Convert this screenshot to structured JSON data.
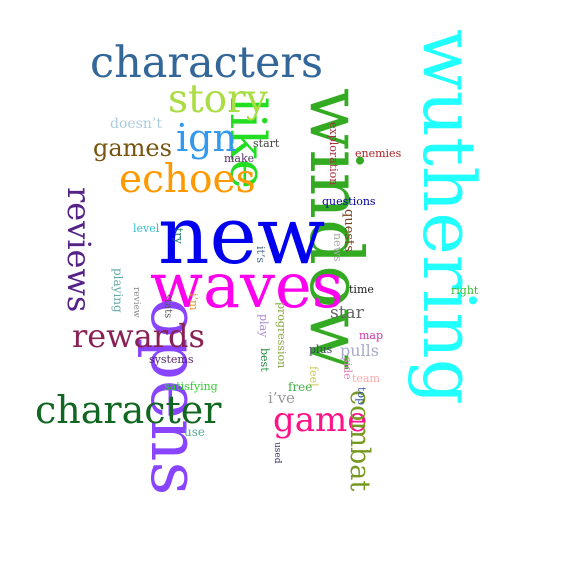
{
  "words": [
    {
      "text": "wuthering",
      "color": "#22ffff",
      "rotated": true
    },
    {
      "text": "window",
      "color": "#33aa22",
      "rotated": true
    },
    {
      "text": "new",
      "color": "#0000ee",
      "rotated": false
    },
    {
      "text": "waves",
      "color": "#ff00ee",
      "rotated": false
    },
    {
      "text": "opens",
      "color": "#8844ff",
      "rotated": true
    },
    {
      "text": "characters",
      "color": "#336699",
      "rotated": false
    },
    {
      "text": "like",
      "color": "#22dd22",
      "rotated": true
    },
    {
      "text": "story",
      "color": "#aadd44",
      "rotated": false
    },
    {
      "text": "echoes",
      "color": "#ff9900",
      "rotated": false
    },
    {
      "text": "ign",
      "color": "#3399ee",
      "rotated": false
    },
    {
      "text": "character",
      "color": "#116622",
      "rotated": false
    },
    {
      "text": "game",
      "color": "#ff1188",
      "rotated": false
    },
    {
      "text": "combat",
      "color": "#779922",
      "rotated": true
    },
    {
      "text": "reviews",
      "color": "#552288",
      "rotated": true
    },
    {
      "text": "rewards",
      "color": "#882255",
      "rotated": false
    },
    {
      "text": "games",
      "color": "#775511",
      "rotated": false
    },
    {
      "text": "doesn’t",
      "color": "#aaccdd",
      "rotated": false
    },
    {
      "text": "start",
      "color": "#444444",
      "rotated": false
    },
    {
      "text": "make",
      "color": "#553366",
      "rotated": false
    },
    {
      "text": "exploration",
      "color": "#aa3344",
      "rotated": true
    },
    {
      "text": "enemies",
      "color": "#aa2222",
      "rotated": false
    },
    {
      "text": "questions",
      "color": "#000099",
      "rotated": false
    },
    {
      "text": "level",
      "color": "#33bbcc",
      "rotated": false
    },
    {
      "text": "try",
      "color": "#117766",
      "rotated": true
    },
    {
      "text": "it’s",
      "color": "#446688",
      "rotated": true
    },
    {
      "text": "news",
      "color": "#aaaaaa",
      "rotated": true
    },
    {
      "text": "quests",
      "color": "#774422",
      "rotated": true
    },
    {
      "text": "playing",
      "color": "#66aaaa",
      "rotated": true
    },
    {
      "text": "review",
      "color": "#888888",
      "rotated": true
    },
    {
      "text": "stats",
      "color": "#555555",
      "rotated": true
    },
    {
      "text": "i’m",
      "color": "#dd9933",
      "rotated": true
    },
    {
      "text": "play",
      "color": "#aa88cc",
      "rotated": true
    },
    {
      "text": "progression",
      "color": "#88aa44",
      "rotated": true
    },
    {
      "text": "star",
      "color": "#666666",
      "rotated": false
    },
    {
      "text": "time",
      "color": "#222222",
      "rotated": false
    },
    {
      "text": "map",
      "color": "#cc33aa",
      "rotated": false
    },
    {
      "text": "right",
      "color": "#33bb33",
      "rotated": false
    },
    {
      "text": "plus",
      "color": "#444466",
      "rotated": false
    },
    {
      "text": "pulls",
      "color": "#aaaacc",
      "rotated": false
    },
    {
      "text": "best",
      "color": "#228844",
      "rotated": true
    },
    {
      "text": "side",
      "color": "#dd88bb",
      "rotated": true
    },
    {
      "text": "feel",
      "color": "#cccc55",
      "rotated": true
    },
    {
      "text": "team",
      "color": "#ffaaaa",
      "rotated": false
    },
    {
      "text": "systems",
      "color": "#552266",
      "rotated": false
    },
    {
      "text": "satisfying",
      "color": "#33cc33",
      "rotated": false
    },
    {
      "text": "free",
      "color": "#44aa44",
      "rotated": false
    },
    {
      "text": "i’ve",
      "color": "#999999",
      "rotated": false
    },
    {
      "text": "top",
      "color": "#3355aa",
      "rotated": true
    },
    {
      "text": "use",
      "color": "#55aa99",
      "rotated": false
    },
    {
      "text": "used",
      "color": "#333366",
      "rotated": true
    }
  ]
}
